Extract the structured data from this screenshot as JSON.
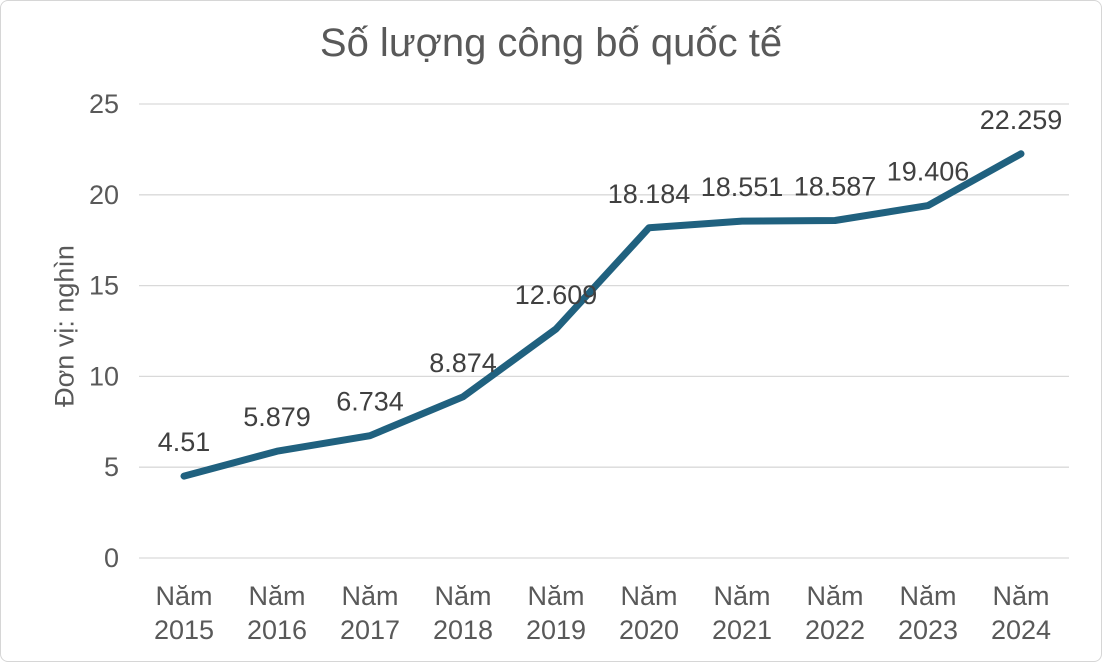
{
  "chart_data": {
    "type": "line",
    "title": "Số lượng công bố quốc tế",
    "ylabel": "Đơn vị: nghìn",
    "xlabel": "",
    "categories": [
      "Năm 2015",
      "Năm 2016",
      "Năm 2017",
      "Năm 2018",
      "Năm 2019",
      "Năm 2020",
      "Năm 2021",
      "Năm 2022",
      "Năm 2023",
      "Năm 2024"
    ],
    "values": [
      4.51,
      5.879,
      6.734,
      8.874,
      12.609,
      18.184,
      18.551,
      18.587,
      19.406,
      22.259
    ],
    "data_labels": [
      "4.51",
      "5.879",
      "6.734",
      "8.874",
      "12.609",
      "18.184",
      "18.551",
      "18.587",
      "19.406",
      "22.259"
    ],
    "ytick_labels": [
      "0",
      "5",
      "10",
      "15",
      "20",
      "25"
    ],
    "ytick_values": [
      0,
      5,
      10,
      15,
      20,
      25
    ],
    "ylim": [
      0,
      25
    ],
    "grid": true,
    "legend": false,
    "colors": {
      "line": "#20617F",
      "grid": "#D9D9D9",
      "title_text": "#595959",
      "axis_text": "#595959",
      "data_label_text": "#404040"
    }
  }
}
